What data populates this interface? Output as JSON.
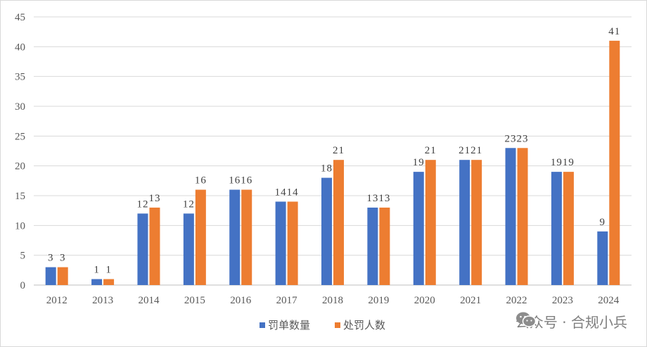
{
  "chart_data": {
    "type": "bar",
    "categories": [
      "2012",
      "2013",
      "2014",
      "2015",
      "2016",
      "2017",
      "2018",
      "2019",
      "2020",
      "2021",
      "2022",
      "2023",
      "2024"
    ],
    "series": [
      {
        "name": "罚单数量",
        "color": "#4472c4",
        "values": [
          3,
          1,
          12,
          12,
          16,
          14,
          18,
          13,
          19,
          21,
          23,
          19,
          9
        ]
      },
      {
        "name": "处罚人数",
        "color": "#ed7d31",
        "values": [
          3,
          1,
          13,
          16,
          16,
          14,
          21,
          13,
          21,
          21,
          23,
          19,
          41
        ]
      }
    ],
    "ylim": [
      0,
      45
    ],
    "yticks": [
      0,
      5,
      10,
      15,
      20,
      25,
      30,
      35,
      40,
      45
    ],
    "grid": true,
    "legend": "bottom"
  },
  "watermark": {
    "icon": "wechat-icon",
    "text": "公众号 · 合规小兵"
  }
}
